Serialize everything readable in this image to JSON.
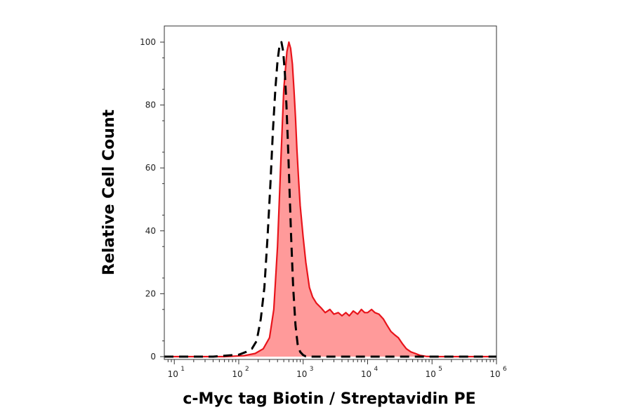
{
  "chart_data": {
    "type": "area",
    "xlabel": "c-Myc tag Biotin / Streptavidin PE",
    "ylabel": "Relative Cell Count",
    "x_scale": "log",
    "xlim": [
      7,
      1000000
    ],
    "ylim": [
      0,
      100
    ],
    "grid": false,
    "legend": "none",
    "x_ticks": [
      {
        "base": "10",
        "exp": "1",
        "value": 10
      },
      {
        "base": "10",
        "exp": "2",
        "value": 100
      },
      {
        "base": "10",
        "exp": "3",
        "value": 1000
      },
      {
        "base": "10",
        "exp": "4",
        "value": 10000
      },
      {
        "base": "10",
        "exp": "5",
        "value": 100000
      },
      {
        "base": "10",
        "exp": "6",
        "value": 1000000
      }
    ],
    "y_ticks": [
      {
        "label": "0",
        "value": 0
      },
      {
        "label": "20",
        "value": 20
      },
      {
        "label": "40",
        "value": 40
      },
      {
        "label": "60",
        "value": 60
      },
      {
        "label": "80",
        "value": 80
      },
      {
        "label": "100",
        "value": 100
      }
    ],
    "series": [
      {
        "style": "filled",
        "color": "#e8141b",
        "fill": "#ff9a9a",
        "x": [
          7,
          60,
          120,
          180,
          240,
          300,
          350,
          400,
          450,
          500,
          560,
          600,
          640,
          680,
          720,
          760,
          800,
          850,
          900,
          1000,
          1100,
          1250,
          1400,
          1600,
          1900,
          2200,
          2600,
          3000,
          3500,
          4000,
          4600,
          5200,
          6000,
          7000,
          8000,
          9000,
          10000,
          11500,
          13000,
          15000,
          17500,
          20000,
          23000,
          26000,
          30000,
          35000,
          40000,
          47000,
          55000,
          65000,
          80000,
          100000,
          1000000
        ],
        "y": [
          0,
          0,
          0.3,
          1,
          2.5,
          6,
          15,
          35,
          62,
          85,
          97,
          100,
          98,
          93,
          85,
          76,
          66,
          56,
          48,
          38,
          30,
          22,
          19,
          17,
          15.5,
          14,
          15,
          13.5,
          14,
          13,
          14,
          13,
          14.5,
          13.5,
          15,
          14,
          14,
          15,
          14,
          13.5,
          12,
          10,
          8,
          7,
          6,
          4,
          2.5,
          1.5,
          1,
          0.4,
          0.1,
          0,
          0
        ]
      },
      {
        "style": "dashed",
        "color": "#000000",
        "x": [
          7,
          40,
          60,
          80,
          100,
          130,
          160,
          190,
          220,
          250,
          280,
          310,
          340,
          370,
          400,
          430,
          460,
          490,
          520,
          550,
          580,
          610,
          650,
          700,
          760,
          820,
          900,
          1000,
          1100,
          1300,
          1000000
        ],
        "y": [
          0,
          0,
          0.3,
          0.5,
          0.6,
          1.5,
          2.5,
          5,
          12,
          22,
          38,
          55,
          72,
          85,
          94,
          99,
          100,
          97,
          90,
          80,
          68,
          55,
          38,
          22,
          10,
          4,
          1.5,
          0.5,
          0.1,
          0,
          0
        ]
      }
    ]
  }
}
